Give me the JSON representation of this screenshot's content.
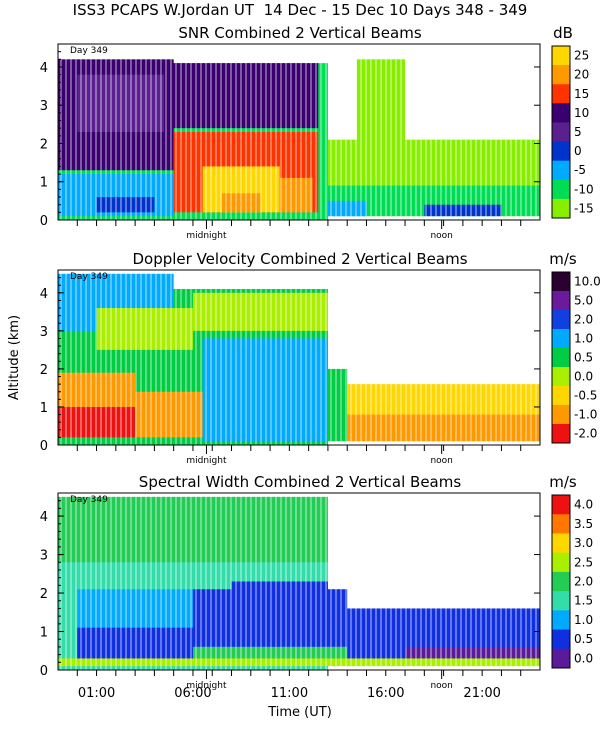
{
  "header": {
    "title": "ISS3 PCAPS W.Jordan UT  14 Dec - 15 Dec 10 Days 348 - 349"
  },
  "chart_data": [
    {
      "type": "heatmap",
      "title": "SNR Combined 2 Vertical Beams",
      "ylabel": "",
      "xlabel": "",
      "ylim": [
        0,
        4.6
      ],
      "xlim": [
        -1,
        24
      ],
      "yticks": [
        0,
        1,
        2,
        3,
        4
      ],
      "x_annotations": [
        {
          "x": 6.7,
          "label": "midnight"
        },
        {
          "x": 18.9,
          "label": "noon"
        }
      ],
      "day_label": "Day 349",
      "colorbar": {
        "unit": "dB",
        "levels": [
          "25",
          "20",
          "15",
          "10",
          "5",
          "0",
          "-5",
          "-10",
          "-15"
        ],
        "colors": [
          "#ffd700",
          "#ff9900",
          "#ff3300",
          "#3a0070",
          "#5a2090",
          "#0033cc",
          "#00aaff",
          "#00dd55",
          "#88ee00"
        ]
      }
    },
    {
      "type": "heatmap",
      "title": "Doppler Velocity Combined 2 Vertical Beams",
      "ylabel": "Altitude (km)",
      "xlabel": "",
      "ylim": [
        0,
        4.6
      ],
      "xlim": [
        -1,
        24
      ],
      "yticks": [
        0,
        1,
        2,
        3,
        4
      ],
      "x_annotations": [
        {
          "x": 6.7,
          "label": "midnight"
        },
        {
          "x": 18.9,
          "label": "noon"
        }
      ],
      "day_label": "Day 349",
      "colorbar": {
        "unit": "m/s",
        "levels": [
          "10.0",
          "5.0",
          "2.0",
          "1.0",
          "0.5",
          "0.0",
          "-0.5",
          "-1.0",
          "-2.0"
        ],
        "colors": [
          "#2a0030",
          "#6a1a9a",
          "#1040e0",
          "#00aaff",
          "#00cc44",
          "#aaee00",
          "#ffd700",
          "#ff9900",
          "#ee1111"
        ]
      }
    },
    {
      "type": "heatmap",
      "title": "Spectral Width Combined 2 Vertical Beams",
      "ylabel": "",
      "xlabel": "Time (UT)",
      "ylim": [
        0,
        4.6
      ],
      "xlim": [
        -1,
        24
      ],
      "yticks": [
        0,
        1,
        2,
        3,
        4
      ],
      "xticks": [
        {
          "x": 1,
          "label": "01:00"
        },
        {
          "x": 6,
          "label": "06:00"
        },
        {
          "x": 11,
          "label": "11:00"
        },
        {
          "x": 16,
          "label": "16:00"
        },
        {
          "x": 21,
          "label": "21:00"
        }
      ],
      "x_annotations": [
        {
          "x": 6.7,
          "label": "midnight"
        },
        {
          "x": 18.9,
          "label": "noon"
        }
      ],
      "day_label": "Day 349",
      "colorbar": {
        "unit": "m/s",
        "levels": [
          "4.0",
          "3.5",
          "3.0",
          "2.5",
          "2.0",
          "1.5",
          "1.0",
          "0.5",
          "0.0"
        ],
        "colors": [
          "#ee1111",
          "#ff7700",
          "#ffd700",
          "#aaee00",
          "#22cc55",
          "#33ddaa",
          "#00aaff",
          "#1030e0",
          "#5a1a9a"
        ]
      }
    }
  ]
}
